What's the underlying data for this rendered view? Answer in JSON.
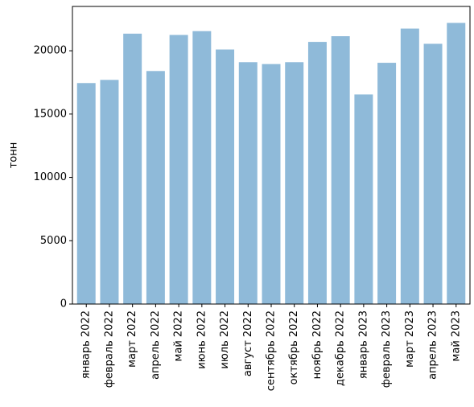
{
  "chart_data": {
    "type": "bar",
    "title": "",
    "xlabel": "",
    "ylabel": "тонн",
    "ylim": [
      0,
      23500
    ],
    "yticks": [
      0,
      5000,
      10000,
      15000,
      20000
    ],
    "categories": [
      "январь 2022",
      "февраль 2022",
      "март 2022",
      "апрель 2022",
      "май 2022",
      "июнь 2022",
      "июль 2022",
      "август 2022",
      "сентябрь 2022",
      "октябрь 2022",
      "ноябрь 2022",
      "декабрь 2022",
      "январь 2023",
      "февраль 2023",
      "март 2023",
      "апрель 2023",
      "май 2023"
    ],
    "values": [
      17450,
      17700,
      21350,
      18400,
      21250,
      21550,
      20100,
      19100,
      18950,
      19100,
      20700,
      21150,
      16550,
      19050,
      21750,
      20550,
      22200
    ],
    "bar_color": "#8fbad9",
    "grid": false
  }
}
